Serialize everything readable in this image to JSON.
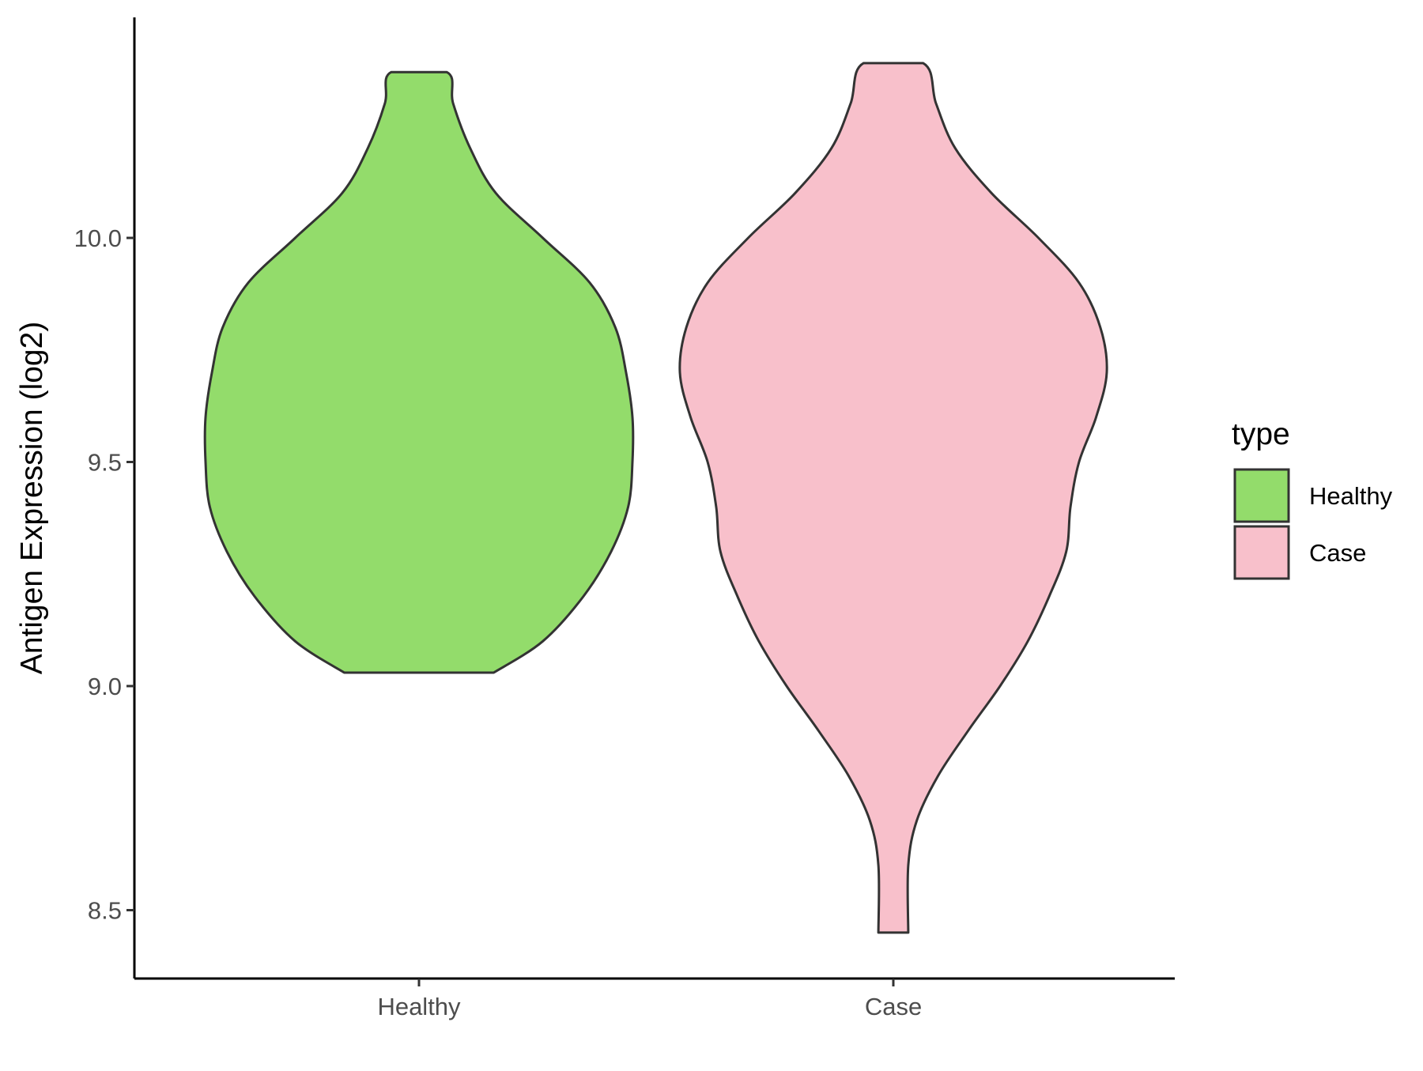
{
  "chart_data": {
    "type": "violin",
    "title": "",
    "xlabel": "",
    "ylabel": "Antigen Expression (log2)",
    "categories": [
      "Healthy",
      "Case"
    ],
    "y_ticks": [
      8.5,
      9.0,
      9.5,
      10.0
    ],
    "y_tick_labels": [
      "8.5",
      "9.0",
      "9.5",
      "10.0"
    ],
    "ylim": [
      8.35,
      10.5
    ],
    "grid": false,
    "legend": {
      "title": "type",
      "position": "right",
      "entries": [
        {
          "label": "Healthy",
          "color": "#93dc6b"
        },
        {
          "label": "Case",
          "color": "#f8c0cb"
        }
      ]
    },
    "series": [
      {
        "name": "Healthy",
        "color": "#93dc6b",
        "min": 9.03,
        "max": 10.37,
        "density_profile": [
          {
            "y": 9.03,
            "w": 0.35
          },
          {
            "y": 9.1,
            "w": 0.58
          },
          {
            "y": 9.2,
            "w": 0.77
          },
          {
            "y": 9.3,
            "w": 0.9
          },
          {
            "y": 9.4,
            "w": 0.98
          },
          {
            "y": 9.5,
            "w": 1.0
          },
          {
            "y": 9.6,
            "w": 1.0
          },
          {
            "y": 9.7,
            "w": 0.97
          },
          {
            "y": 9.8,
            "w": 0.92
          },
          {
            "y": 9.9,
            "w": 0.8
          },
          {
            "y": 10.0,
            "w": 0.58
          },
          {
            "y": 10.1,
            "w": 0.36
          },
          {
            "y": 10.2,
            "w": 0.24
          },
          {
            "y": 10.3,
            "w": 0.16
          },
          {
            "y": 10.37,
            "w": 0.13
          }
        ]
      },
      {
        "name": "Case",
        "color": "#f8c0cb",
        "min": 8.45,
        "max": 10.39,
        "density_profile": [
          {
            "y": 8.45,
            "w": 0.07
          },
          {
            "y": 8.6,
            "w": 0.07
          },
          {
            "y": 8.7,
            "w": 0.11
          },
          {
            "y": 8.8,
            "w": 0.21
          },
          {
            "y": 8.9,
            "w": 0.35
          },
          {
            "y": 9.0,
            "w": 0.5
          },
          {
            "y": 9.1,
            "w": 0.63
          },
          {
            "y": 9.2,
            "w": 0.73
          },
          {
            "y": 9.3,
            "w": 0.81
          },
          {
            "y": 9.4,
            "w": 0.83
          },
          {
            "y": 9.5,
            "w": 0.87
          },
          {
            "y": 9.6,
            "w": 0.95
          },
          {
            "y": 9.7,
            "w": 1.0
          },
          {
            "y": 9.8,
            "w": 0.97
          },
          {
            "y": 9.9,
            "w": 0.87
          },
          {
            "y": 10.0,
            "w": 0.68
          },
          {
            "y": 10.1,
            "w": 0.46
          },
          {
            "y": 10.2,
            "w": 0.29
          },
          {
            "y": 10.3,
            "w": 0.2
          },
          {
            "y": 10.39,
            "w": 0.14
          }
        ]
      }
    ]
  }
}
